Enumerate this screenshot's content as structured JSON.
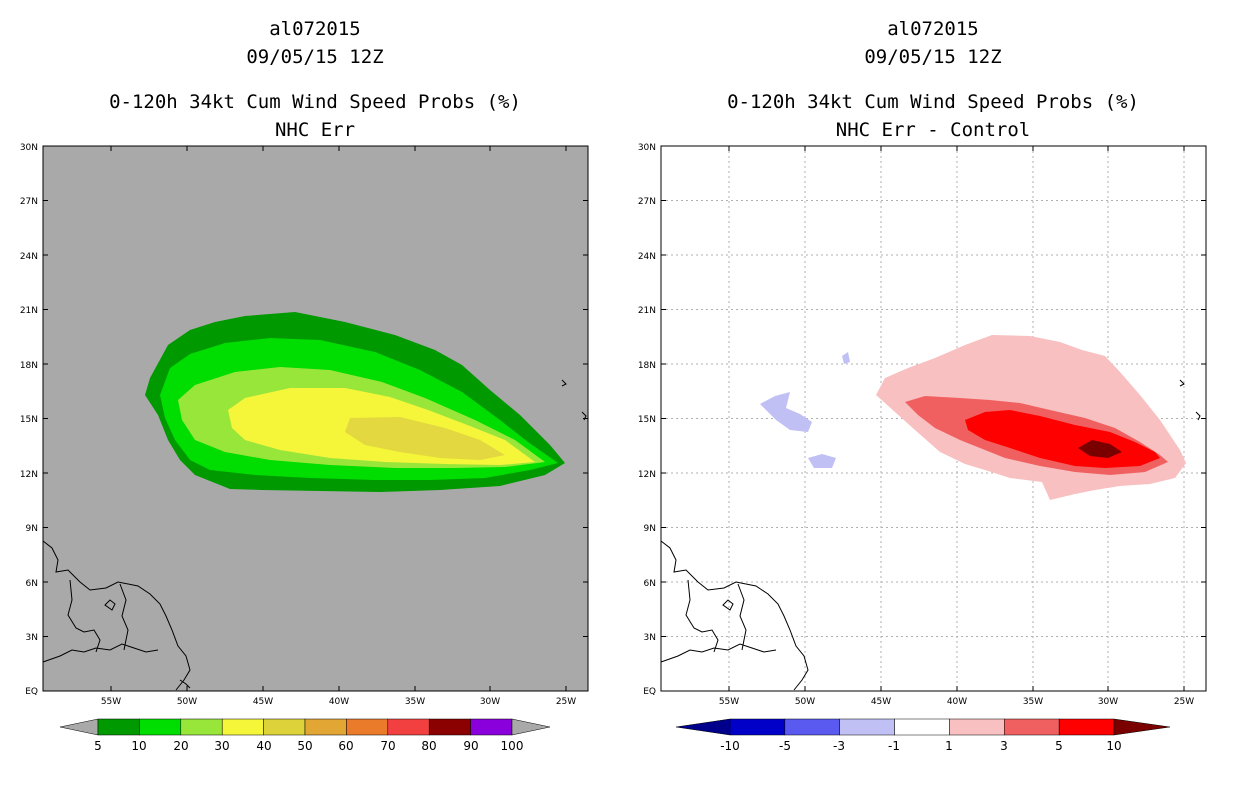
{
  "left_panel": {
    "title_lines": [
      "al072015",
      "09/05/15 12Z",
      "0-120h 34kt Cum Wind Speed Probs (%)",
      "NHC Err"
    ],
    "background_color": "#a9a9a9",
    "lat_ticks": [
      "30N",
      "27N",
      "24N",
      "21N",
      "18N",
      "15N",
      "12N",
      "9N",
      "6N",
      "3N",
      "EQ"
    ],
    "lon_ticks": [
      "55W",
      "50W",
      "45W",
      "40W",
      "35W",
      "30W",
      "25W"
    ],
    "colorbar": {
      "labels": [
        "5",
        "10",
        "20",
        "30",
        "40",
        "50",
        "60",
        "70",
        "80",
        "90",
        "100"
      ],
      "colors": [
        "#009900",
        "#00dd00",
        "#99e63b",
        "#f5f53a",
        "#ddd23a",
        "#e2a634",
        "#ea7b2a",
        "#f24040",
        "#8b0000",
        "#8a00dd"
      ],
      "extend_color": "#a9a9a9"
    }
  },
  "right_panel": {
    "title_lines": [
      "al072015",
      "09/05/15 12Z",
      "0-120h 34kt Cum Wind Speed Probs (%)",
      "NHC Err - Control"
    ],
    "background_color": "#ffffff",
    "lat_ticks": [
      "30N",
      "27N",
      "24N",
      "21N",
      "18N",
      "15N",
      "12N",
      "9N",
      "6N",
      "3N",
      "EQ"
    ],
    "lon_ticks": [
      "55W",
      "50W",
      "45W",
      "40W",
      "35W",
      "30W",
      "25W"
    ],
    "colorbar": {
      "labels": [
        "-10",
        "-5",
        "-3",
        "-1",
        "1",
        "3",
        "5",
        "10"
      ],
      "colors": [
        "#0000c8",
        "#5a5af0",
        "#c0c0f5",
        "#ffffff",
        "#f8c0c0",
        "#f06060",
        "#ff0000"
      ],
      "low_extend_color": "#00008b",
      "high_extend_color": "#7a0000"
    }
  }
}
